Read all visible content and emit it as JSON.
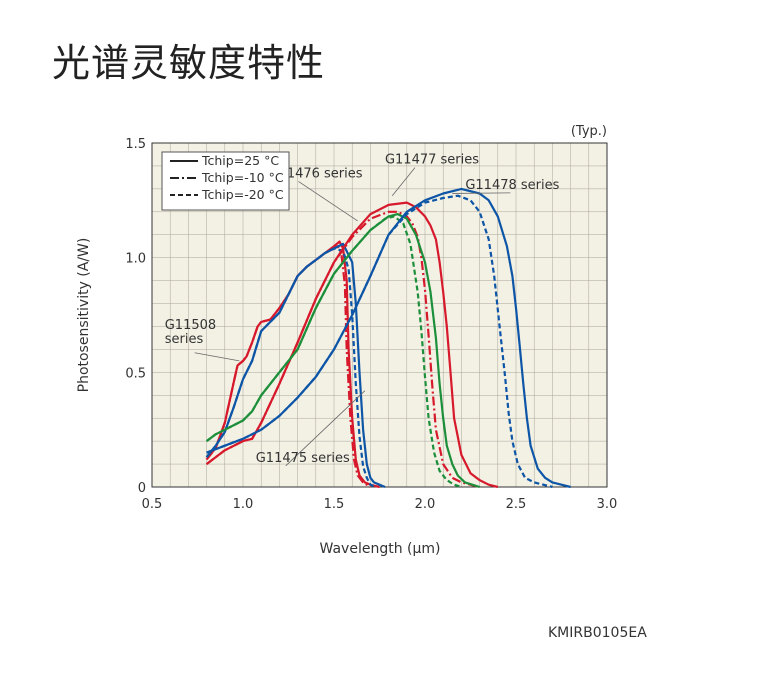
{
  "page": {
    "title": "光谱灵敏度特性",
    "code": "KMIRB0105EA"
  },
  "chart_data": {
    "type": "line",
    "title": "",
    "note": "(Typ.)",
    "xlabel": "Wavelength (μm)",
    "ylabel": "Photosensitivity (A/W)",
    "xlim": [
      0.5,
      3.0
    ],
    "ylim": [
      0,
      1.5
    ],
    "x_ticks": [
      "0.5",
      "1.0",
      "1.5",
      "2.0",
      "2.5",
      "3.0"
    ],
    "y_ticks": [
      "0",
      "0.5",
      "1.0",
      "1.5"
    ],
    "grid": true,
    "legend_position": "top-left",
    "legend": [
      {
        "label": "Tchip=25 °C",
        "style": "solid"
      },
      {
        "label": "Tchip=-10 °C",
        "style": "dashdot"
      },
      {
        "label": "Tchip=-20 °C",
        "style": "dashed"
      }
    ],
    "annotations": [
      {
        "text": "G11508",
        "line2": "series",
        "tx": 0.57,
        "ty": 0.69,
        "px": 0.98,
        "py": 0.55
      },
      {
        "text": "G11475 series",
        "tx": 1.07,
        "ty": 0.11,
        "px": 1.67,
        "py": 0.42
      },
      {
        "text": "G11476 series",
        "tx": 1.14,
        "ty": 1.35,
        "px": 1.63,
        "py": 1.16
      },
      {
        "text": "G11477 series",
        "tx": 1.78,
        "ty": 1.41,
        "px": 1.82,
        "py": 1.27
      },
      {
        "text": "G11478 series",
        "tx": 2.48,
        "ty": 1.3,
        "px": 2.15,
        "py": 1.28
      }
    ],
    "colors": {
      "G11508": "#d7192c",
      "G11475": "#0d55a6",
      "G11476": "#d7192c",
      "G11477": "#1c8f3a",
      "G11478": "#0d55a6",
      "plot_bg": "#f3f0e4",
      "grid": "#a8a59a"
    },
    "series": [
      {
        "name": "G11508",
        "temp": "25",
        "color": "#d7192c",
        "x": [
          0.8,
          0.85,
          0.9,
          0.95,
          0.97,
          1.0,
          1.02,
          1.05,
          1.08,
          1.1,
          1.15,
          1.2,
          1.25,
          1.3,
          1.35,
          1.4,
          1.45,
          1.5,
          1.53,
          1.55,
          1.57,
          1.58,
          1.6,
          1.62,
          1.64,
          1.67,
          1.7,
          1.75
        ],
        "y": [
          0.12,
          0.17,
          0.28,
          0.46,
          0.53,
          0.55,
          0.57,
          0.63,
          0.7,
          0.72,
          0.73,
          0.78,
          0.84,
          0.92,
          0.96,
          0.99,
          1.02,
          1.05,
          1.07,
          1.04,
          0.9,
          0.6,
          0.3,
          0.12,
          0.05,
          0.02,
          0.01,
          0.0
        ]
      },
      {
        "name": "G11508",
        "temp": "-10",
        "color": "#d7192c",
        "x": [
          0.8,
          0.85,
          0.9,
          0.95,
          0.97,
          1.0,
          1.02,
          1.05,
          1.08,
          1.1,
          1.15,
          1.2,
          1.25,
          1.3,
          1.35,
          1.4,
          1.45,
          1.5,
          1.52,
          1.54,
          1.56,
          1.57,
          1.59,
          1.61,
          1.63,
          1.66,
          1.7
        ],
        "y": [
          0.12,
          0.17,
          0.28,
          0.46,
          0.53,
          0.55,
          0.57,
          0.63,
          0.7,
          0.72,
          0.73,
          0.78,
          0.84,
          0.92,
          0.96,
          0.99,
          1.02,
          1.04,
          1.05,
          1.02,
          0.88,
          0.6,
          0.3,
          0.12,
          0.05,
          0.02,
          0.0
        ]
      },
      {
        "name": "G11475",
        "temp": "25",
        "color": "#0d55a6",
        "x": [
          0.8,
          0.85,
          0.9,
          0.95,
          1.0,
          1.05,
          1.1,
          1.15,
          1.2,
          1.25,
          1.3,
          1.35,
          1.4,
          1.45,
          1.5,
          1.55,
          1.6,
          1.62,
          1.64,
          1.66,
          1.68,
          1.7,
          1.72,
          1.75,
          1.78
        ],
        "y": [
          0.13,
          0.18,
          0.24,
          0.35,
          0.47,
          0.55,
          0.68,
          0.72,
          0.76,
          0.84,
          0.92,
          0.96,
          0.99,
          1.02,
          1.04,
          1.06,
          0.98,
          0.8,
          0.5,
          0.25,
          0.1,
          0.04,
          0.02,
          0.01,
          0.0
        ]
      },
      {
        "name": "G11475",
        "temp": "-20",
        "color": "#0d55a6",
        "x": [
          0.8,
          0.85,
          0.9,
          0.95,
          1.0,
          1.05,
          1.1,
          1.15,
          1.2,
          1.25,
          1.3,
          1.35,
          1.4,
          1.45,
          1.5,
          1.55,
          1.58,
          1.6,
          1.62,
          1.64,
          1.66,
          1.68,
          1.7,
          1.73
        ],
        "y": [
          0.13,
          0.18,
          0.24,
          0.35,
          0.47,
          0.55,
          0.68,
          0.72,
          0.76,
          0.84,
          0.92,
          0.96,
          0.99,
          1.02,
          1.04,
          1.03,
          0.95,
          0.75,
          0.45,
          0.22,
          0.09,
          0.04,
          0.01,
          0.0
        ]
      },
      {
        "name": "G11476",
        "temp": "25",
        "color": "#d7192c",
        "x": [
          0.8,
          0.9,
          1.0,
          1.05,
          1.1,
          1.2,
          1.3,
          1.4,
          1.5,
          1.6,
          1.7,
          1.8,
          1.9,
          1.95,
          2.0,
          2.03,
          2.06,
          2.08,
          2.1,
          2.12,
          2.14,
          2.16,
          2.2,
          2.25,
          2.3,
          2.35,
          2.4
        ],
        "y": [
          0.1,
          0.16,
          0.2,
          0.21,
          0.28,
          0.45,
          0.63,
          0.82,
          0.98,
          1.1,
          1.19,
          1.23,
          1.24,
          1.22,
          1.18,
          1.14,
          1.08,
          0.98,
          0.85,
          0.7,
          0.5,
          0.3,
          0.14,
          0.06,
          0.03,
          0.01,
          0.0
        ]
      },
      {
        "name": "G11476",
        "temp": "-10",
        "color": "#d7192c",
        "x": [
          0.8,
          0.9,
          1.0,
          1.05,
          1.1,
          1.2,
          1.3,
          1.4,
          1.5,
          1.6,
          1.7,
          1.8,
          1.85,
          1.9,
          1.93,
          1.96,
          1.98,
          2.0,
          2.02,
          2.04,
          2.06,
          2.1,
          2.15,
          2.2,
          2.3
        ],
        "y": [
          0.1,
          0.16,
          0.2,
          0.21,
          0.28,
          0.45,
          0.63,
          0.82,
          0.98,
          1.09,
          1.17,
          1.2,
          1.2,
          1.18,
          1.15,
          1.09,
          1.0,
          0.86,
          0.66,
          0.44,
          0.25,
          0.1,
          0.04,
          0.02,
          0.0
        ]
      },
      {
        "name": "G11477",
        "temp": "25",
        "color": "#1c8f3a",
        "x": [
          0.8,
          0.85,
          0.9,
          0.95,
          1.0,
          1.05,
          1.1,
          1.2,
          1.3,
          1.4,
          1.5,
          1.6,
          1.7,
          1.8,
          1.85,
          1.9,
          1.95,
          2.0,
          2.03,
          2.06,
          2.08,
          2.1,
          2.12,
          2.15,
          2.18,
          2.22,
          2.26,
          2.3
        ],
        "y": [
          0.2,
          0.23,
          0.25,
          0.27,
          0.29,
          0.33,
          0.4,
          0.5,
          0.6,
          0.78,
          0.93,
          1.03,
          1.12,
          1.18,
          1.19,
          1.17,
          1.1,
          0.98,
          0.85,
          0.65,
          0.45,
          0.3,
          0.18,
          0.1,
          0.05,
          0.02,
          0.01,
          0.0
        ]
      },
      {
        "name": "G11477",
        "temp": "-20",
        "color": "#1c8f3a",
        "x": [
          0.8,
          0.85,
          0.9,
          0.95,
          1.0,
          1.05,
          1.1,
          1.2,
          1.3,
          1.4,
          1.5,
          1.6,
          1.7,
          1.78,
          1.83,
          1.88,
          1.92,
          1.96,
          1.98,
          2.0,
          2.02,
          2.05,
          2.08,
          2.12,
          2.16,
          2.2
        ],
        "y": [
          0.2,
          0.23,
          0.25,
          0.27,
          0.29,
          0.33,
          0.4,
          0.5,
          0.6,
          0.78,
          0.93,
          1.03,
          1.12,
          1.17,
          1.18,
          1.15,
          1.06,
          0.85,
          0.68,
          0.48,
          0.3,
          0.15,
          0.07,
          0.03,
          0.01,
          0.0
        ]
      },
      {
        "name": "G11478",
        "temp": "25",
        "color": "#0d55a6",
        "x": [
          0.8,
          0.9,
          1.0,
          1.1,
          1.2,
          1.3,
          1.4,
          1.5,
          1.6,
          1.7,
          1.8,
          1.9,
          2.0,
          2.1,
          2.2,
          2.3,
          2.35,
          2.4,
          2.45,
          2.48,
          2.5,
          2.52,
          2.54,
          2.56,
          2.58,
          2.62,
          2.66,
          2.7,
          2.75,
          2.8
        ],
        "y": [
          0.15,
          0.18,
          0.21,
          0.25,
          0.31,
          0.39,
          0.48,
          0.6,
          0.75,
          0.92,
          1.1,
          1.2,
          1.25,
          1.28,
          1.3,
          1.28,
          1.25,
          1.18,
          1.05,
          0.92,
          0.78,
          0.62,
          0.45,
          0.3,
          0.18,
          0.08,
          0.04,
          0.02,
          0.01,
          0.0
        ]
      },
      {
        "name": "G11478",
        "temp": "-20",
        "color": "#0d55a6",
        "x": [
          0.8,
          0.9,
          1.0,
          1.1,
          1.2,
          1.3,
          1.4,
          1.5,
          1.6,
          1.7,
          1.8,
          1.9,
          2.0,
          2.1,
          2.18,
          2.25,
          2.3,
          2.35,
          2.38,
          2.41,
          2.44,
          2.46,
          2.48,
          2.51,
          2.55,
          2.6,
          2.65,
          2.7
        ],
        "y": [
          0.15,
          0.18,
          0.21,
          0.25,
          0.31,
          0.39,
          0.48,
          0.6,
          0.75,
          0.92,
          1.1,
          1.19,
          1.24,
          1.26,
          1.27,
          1.25,
          1.2,
          1.08,
          0.92,
          0.7,
          0.48,
          0.32,
          0.2,
          0.1,
          0.04,
          0.02,
          0.01,
          0.0
        ]
      }
    ]
  }
}
